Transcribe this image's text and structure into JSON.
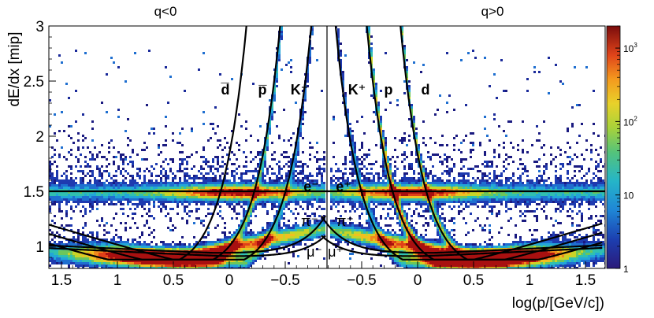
{
  "chart_data": {
    "type": "heatmap",
    "title": "",
    "xlabel": "log(p/[GeV/c])",
    "ylabel": "dE/dx [mip]",
    "panels": [
      {
        "name": "q<0",
        "x_range": [
          1.6,
          -0.85
        ],
        "xticks": [
          "1.5",
          "1",
          "0.5",
          "0",
          "−0.5"
        ]
      },
      {
        "name": "q>0",
        "x_range": [
          -0.85,
          1.6
        ],
        "xticks": [
          "−0.5",
          "0",
          "0.5",
          "1",
          "1.5"
        ]
      }
    ],
    "ylim": [
      0.8,
      3.0
    ],
    "yticks": [
      "1",
      "1.5",
      "2",
      "2.5",
      "3"
    ],
    "colorbar": {
      "scale": "log",
      "range": [
        1,
        2000
      ],
      "ticks": [
        {
          "value": 1,
          "base": "1",
          "exp": ""
        },
        {
          "value": 10,
          "base": "10",
          "exp": ""
        },
        {
          "value": 100,
          "base": "10",
          "exp": "2"
        },
        {
          "value": 1000,
          "base": "10",
          "exp": "3"
        }
      ]
    },
    "band_labels": {
      "q<0": [
        {
          "text": "d̅",
          "x": 0.05,
          "y": 2.43
        },
        {
          "text": "p̅",
          "x": -0.25,
          "y": 2.43
        },
        {
          "text": "K⁻",
          "x": -0.6,
          "y": 2.43
        },
        {
          "text": "e⁻",
          "x": -0.68,
          "y": 1.55
        },
        {
          "text": "π⁻",
          "x": -0.65,
          "y": 1.22
        },
        {
          "text": "μ⁻",
          "x": -0.65,
          "y": 0.95
        }
      ],
      "q>0": [
        {
          "text": "K⁺",
          "x": -0.6,
          "y": 2.43
        },
        {
          "text": "p",
          "x": -0.25,
          "y": 2.43
        },
        {
          "text": "d",
          "x": 0.05,
          "y": 2.43
        },
        {
          "text": "e⁺",
          "x": -0.68,
          "y": 1.55
        },
        {
          "text": "π⁺",
          "x": -0.65,
          "y": 1.22
        },
        {
          "text": "μ⁺",
          "x": -0.65,
          "y": 0.95
        }
      ]
    },
    "curves": [
      {
        "name": "d",
        "mass_gev": 1.876
      },
      {
        "name": "p",
        "mass_gev": 0.938
      },
      {
        "name": "K",
        "mass_gev": 0.494
      },
      {
        "name": "e",
        "dedx": 1.5
      },
      {
        "name": "pi",
        "dedx_min": 0.94
      },
      {
        "name": "mu",
        "dedx_min": 0.9
      }
    ]
  }
}
